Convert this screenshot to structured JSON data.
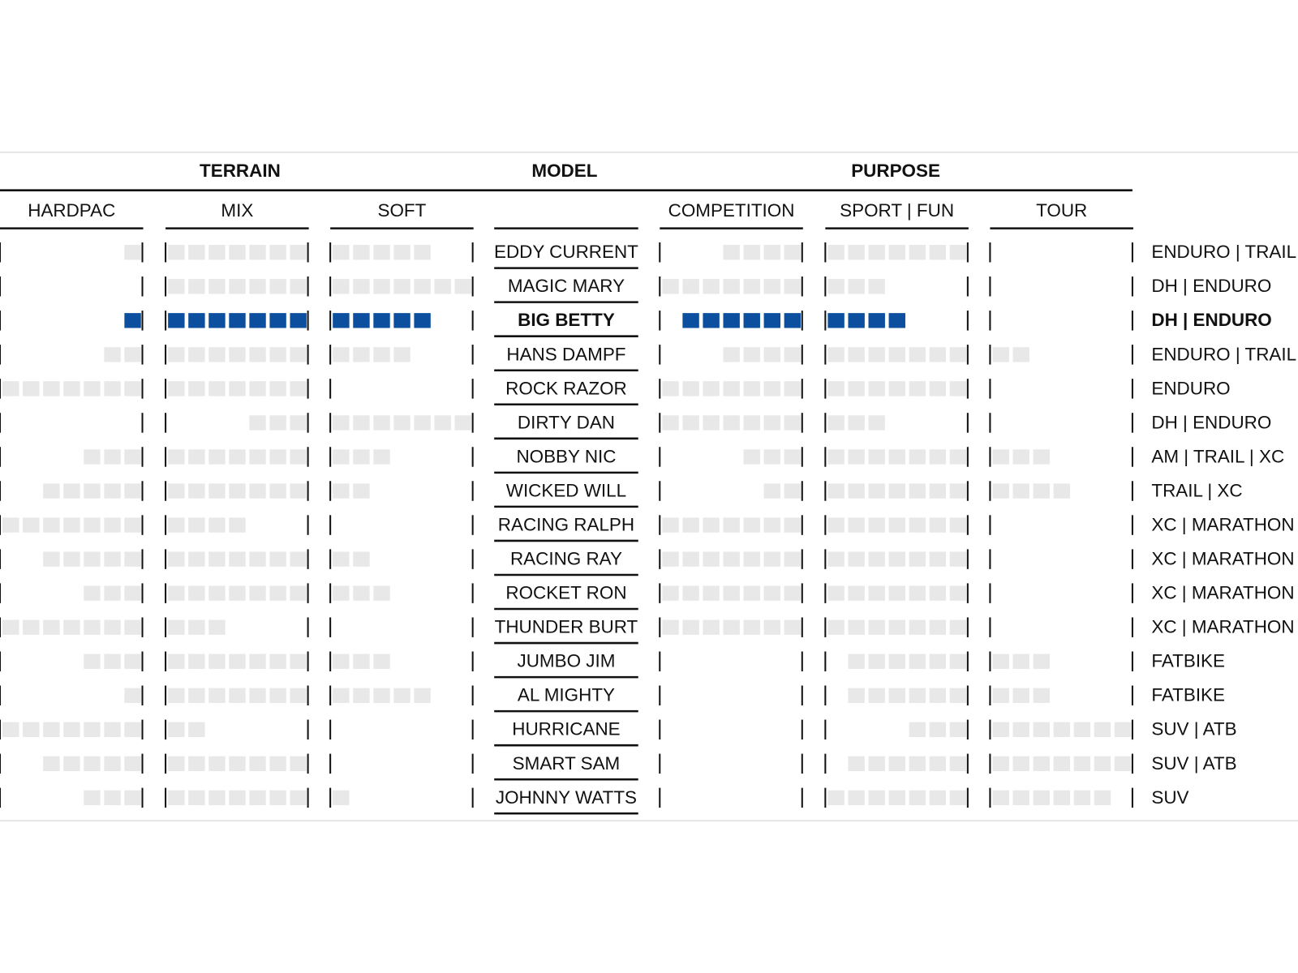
{
  "header": {
    "terrain": "TERRAIN",
    "model": "MODEL",
    "purpose": "PURPOSE"
  },
  "terrain_columns": [
    "HARDPAC",
    "MIX",
    "SOFT"
  ],
  "purpose_columns": [
    "COMPETITION",
    "SPORT | FUN",
    "TOUR"
  ],
  "colors": {
    "bar": "#e8e8e8",
    "highlight": "#0b4f9e"
  },
  "rows": [
    {
      "model": "EDDY CURRENT",
      "usage": "ENDURO | TRAIL",
      "terrain": [
        6,
        19
      ],
      "purpose": [
        3,
        14
      ]
    },
    {
      "model": "MAGIC MARY",
      "usage": "DH | ENDURO",
      "terrain": [
        7,
        21
      ],
      "purpose": [
        0,
        10
      ]
    },
    {
      "model": "BIG BETTY",
      "usage": "DH | ENDURO",
      "terrain": [
        6,
        19
      ],
      "purpose": [
        1,
        11
      ],
      "highlight": true
    },
    {
      "model": "HANS DAMPF",
      "usage": "ENDURO | TRAIL",
      "terrain": [
        5,
        18
      ],
      "purpose": [
        3,
        16
      ]
    },
    {
      "model": "ROCK RAZOR",
      "usage": "ENDURO",
      "terrain": [
        0,
        14
      ],
      "purpose": [
        0,
        14
      ]
    },
    {
      "model": "DIRTY DAN",
      "usage": "DH | ENDURO",
      "terrain": [
        11,
        21
      ],
      "purpose": [
        0,
        10
      ]
    },
    {
      "model": "NOBBY NIC",
      "usage": "AM | TRAIL | XC",
      "terrain": [
        4,
        17
      ],
      "purpose": [
        4,
        17
      ]
    },
    {
      "model": "WICKED WILL",
      "usage": "TRAIL | XC",
      "terrain": [
        2,
        16
      ],
      "purpose": [
        5,
        18
      ]
    },
    {
      "model": "RACING RALPH",
      "usage": "XC | MARATHON",
      "terrain": [
        0,
        11
      ],
      "purpose": [
        0,
        14
      ]
    },
    {
      "model": "RACING RAY",
      "usage": "XC | MARATHON",
      "terrain": [
        2,
        16
      ],
      "purpose": [
        0,
        14
      ]
    },
    {
      "model": "ROCKET RON",
      "usage": "XC | MARATHON",
      "terrain": [
        4,
        17
      ],
      "purpose": [
        0,
        14
      ]
    },
    {
      "model": "THUNDER BURT",
      "usage": "XC | MARATHON",
      "terrain": [
        0,
        10
      ],
      "purpose": [
        0,
        14
      ]
    },
    {
      "model": "JUMBO JIM",
      "usage": "FATBIKE",
      "terrain": [
        4,
        17
      ],
      "purpose": [
        8,
        17
      ]
    },
    {
      "model": "AL MIGHTY",
      "usage": "FATBIKE",
      "terrain": [
        6,
        19
      ],
      "purpose": [
        8,
        17
      ]
    },
    {
      "model": "HURRICANE",
      "usage": "SUV | ATB",
      "terrain": [
        0,
        9
      ],
      "purpose": [
        11,
        21
      ]
    },
    {
      "model": "SMART SAM",
      "usage": "SUV | ATB",
      "terrain": [
        2,
        14
      ],
      "purpose": [
        8,
        21
      ]
    },
    {
      "model": "JOHNNY WATTS",
      "usage": "SUV",
      "terrain": [
        4,
        15
      ],
      "purpose": [
        7,
        20
      ]
    }
  ]
}
